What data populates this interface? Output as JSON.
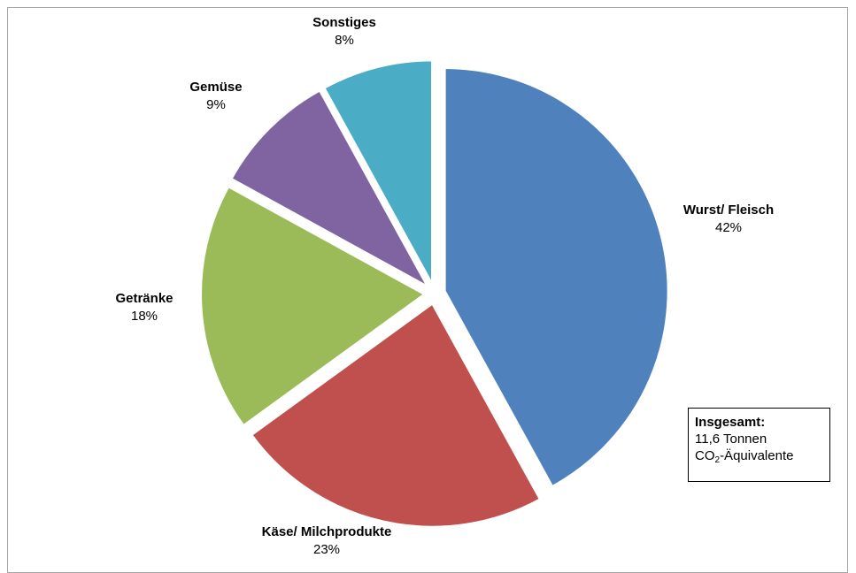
{
  "chart_data": {
    "type": "pie",
    "slices": [
      {
        "label": "Wurst/ Fleisch",
        "value": 42,
        "value_label": "42%",
        "color": "#4f81bd"
      },
      {
        "label": "Käse/ Milchprodukte",
        "value": 23,
        "value_label": "23%",
        "color": "#c0504d"
      },
      {
        "label": "Getränke",
        "value": 18,
        "value_label": "18%",
        "color": "#9bbb59"
      },
      {
        "label": "Gemüse",
        "value": 9,
        "value_label": "9%",
        "color": "#8064a2"
      },
      {
        "label": "Sonstiges",
        "value": 8,
        "value_label": "8%",
        "color": "#4bacc6"
      }
    ],
    "exploded": true,
    "start": "12 o'clock, clockwise"
  },
  "annotation": {
    "title": "Insgesamt:",
    "line1": "11,6 Tonnen",
    "line2_prefix": "CO",
    "line2_sub": "2",
    "line2_suffix": "-Äquivalente"
  }
}
